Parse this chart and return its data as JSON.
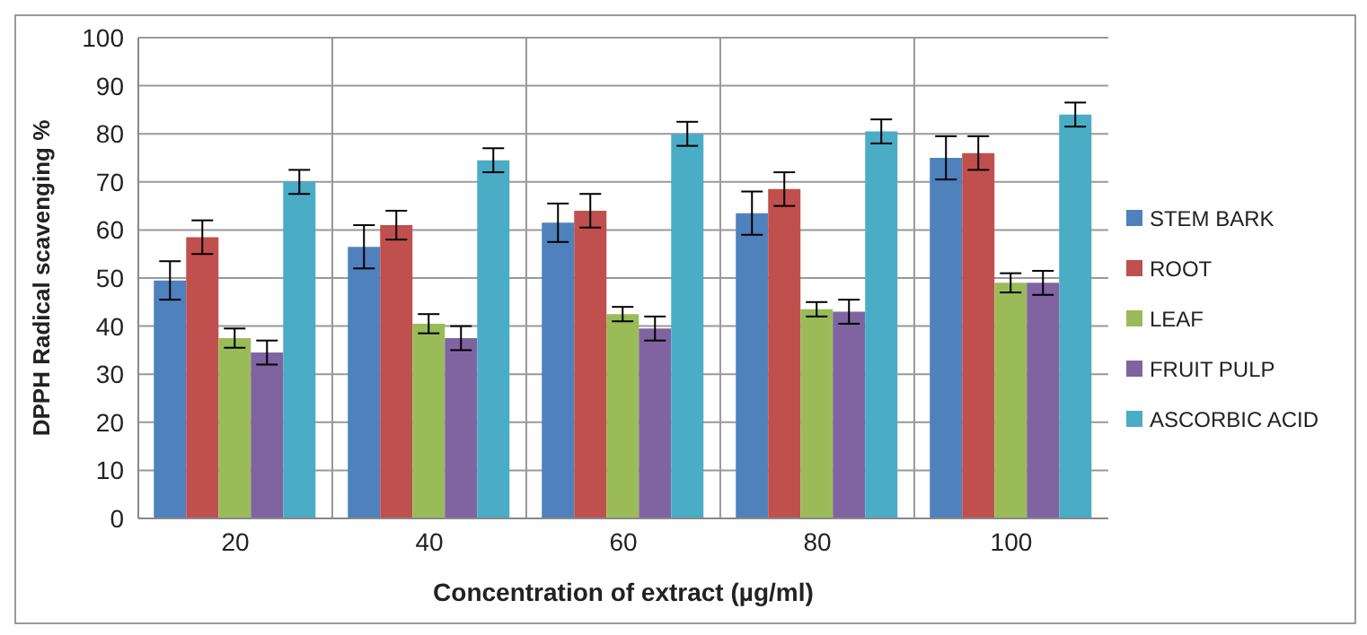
{
  "chart_data": {
    "type": "bar",
    "xlabel": "Concentration of extract (µg/ml)",
    "ylabel": "DPPH Radical scavenging %",
    "categories": [
      "20",
      "40",
      "60",
      "80",
      "100"
    ],
    "series": [
      {
        "name": "STEM BARK",
        "color": "#4f81bd",
        "values": [
          49.5,
          56.5,
          61.5,
          63.5,
          75
        ],
        "errors": [
          4,
          4.5,
          4,
          4.5,
          4.5
        ]
      },
      {
        "name": "ROOT",
        "color": "#c0504d",
        "values": [
          58.5,
          61,
          64,
          68.5,
          76
        ],
        "errors": [
          3.5,
          3,
          3.5,
          3.5,
          3.5
        ]
      },
      {
        "name": "LEAF",
        "color": "#9bbb59",
        "values": [
          37.5,
          40.5,
          42.5,
          43.5,
          49
        ],
        "errors": [
          2,
          2,
          1.5,
          1.5,
          2
        ]
      },
      {
        "name": "FRUIT PULP",
        "color": "#8064a2",
        "values": [
          34.5,
          37.5,
          39.5,
          43,
          49
        ],
        "errors": [
          2.5,
          2.5,
          2.5,
          2.5,
          2.5
        ]
      },
      {
        "name": "ASCORBIC ACID",
        "color": "#4bacc6",
        "values": [
          70,
          74.5,
          80,
          80.5,
          84
        ],
        "errors": [
          2.5,
          2.5,
          2.5,
          2.5,
          2.5
        ]
      }
    ],
    "ylim": [
      0,
      100
    ],
    "yticks": [
      0,
      10,
      20,
      30,
      40,
      50,
      60,
      70,
      80,
      90,
      100
    ],
    "grid": true,
    "legend": "right"
  }
}
